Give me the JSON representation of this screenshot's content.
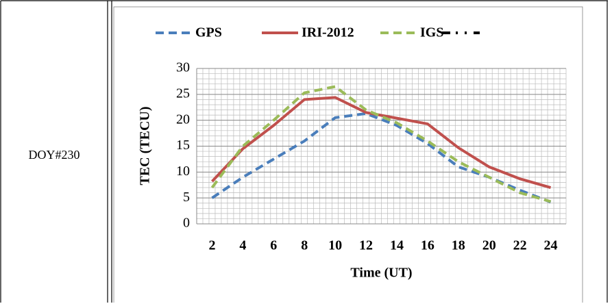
{
  "row_label": "DOY#230",
  "chart_data": {
    "type": "line",
    "categories": [
      "2",
      "4",
      "6",
      "8",
      "10",
      "12",
      "14",
      "16",
      "18",
      "20",
      "22",
      "24"
    ],
    "series": [
      {
        "name": "GPS",
        "color": "#4a7ebb",
        "dash": "dashed",
        "values": [
          5,
          9,
          12.5,
          16,
          20.5,
          21.3,
          19,
          15.5,
          11,
          9,
          6.5,
          4.2
        ]
      },
      {
        "name": "IRI-2012",
        "color": "#c0504d",
        "dash": "solid",
        "values": [
          8.2,
          14.5,
          19,
          24,
          24.4,
          21.5,
          20.4,
          19.3,
          14.7,
          11,
          8.7,
          7
        ]
      },
      {
        "name": "IGS",
        "color": "#9bbb59",
        "dash": "dashed",
        "values": [
          7,
          15,
          20,
          25.3,
          26.5,
          22,
          19.5,
          16,
          12,
          9,
          6,
          4.3
        ]
      }
    ],
    "ylim": [
      0,
      30
    ],
    "yticks": [
      0,
      5,
      10,
      15,
      20,
      25,
      30
    ],
    "xlabel": "Time (UT)",
    "ylabel": "TEC (TECU)",
    "grid": true,
    "minor_grid": true
  }
}
